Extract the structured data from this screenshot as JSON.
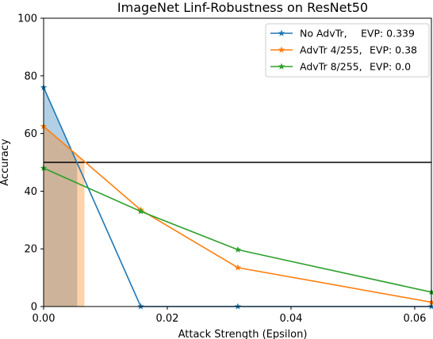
{
  "chart_data": {
    "type": "line",
    "title": "ImageNet Linf-Robustness on ResNet50",
    "xlabel": "Attack Strength (Epsilon)",
    "ylabel": "Accuracy",
    "xlim": [
      0,
      0.0627
    ],
    "ylim": [
      0,
      100
    ],
    "xticks": [
      {
        "value": 0.0,
        "label": "0.00"
      },
      {
        "value": 0.02,
        "label": "0.02"
      },
      {
        "value": 0.04,
        "label": "0.04"
      },
      {
        "value": 0.06,
        "label": "0.06"
      }
    ],
    "yticks": [
      {
        "value": 0,
        "label": "0"
      },
      {
        "value": 20,
        "label": "20"
      },
      {
        "value": 40,
        "label": "40"
      },
      {
        "value": 60,
        "label": "60"
      },
      {
        "value": 80,
        "label": "80"
      },
      {
        "value": 100,
        "label": "100"
      }
    ],
    "threshold": 50,
    "legend_position": "top-right",
    "grid": false,
    "series": [
      {
        "name": "No AdvTr,",
        "evp_label": "EVP",
        "evp_value": ": 0.339",
        "color": "#1f77b4",
        "x": [
          0,
          0.0157,
          0.0314,
          0.0627
        ],
        "y": [
          76,
          0,
          0,
          0
        ],
        "marker_x": [
          0,
          0.0157,
          0.0314,
          0.0627
        ],
        "marker_y": [
          76,
          0,
          0,
          0
        ],
        "evp_fill_x": 0.00543
      },
      {
        "name": "AdvTr 4/255,",
        "evp_label": "EVP",
        "evp_value": ": 0.38",
        "color": "#ff7f0e",
        "x": [
          0,
          0.0157,
          0.0314,
          0.0627
        ],
        "y": [
          62.5,
          33.5,
          13.5,
          1.5
        ],
        "marker_x": [
          0,
          0.0157,
          0.0314,
          0.0627
        ],
        "marker_y": [
          62.5,
          33.5,
          13.5,
          1.5
        ],
        "evp_fill_x": 0.0066
      },
      {
        "name": "AdvTr 8/255,",
        "evp_label": "EVP",
        "evp_value": ": 0.0",
        "color": "#2ca02c",
        "x": [
          0,
          0.0157,
          0.0314,
          0.0627
        ],
        "y": [
          48,
          33,
          19.7,
          5
        ],
        "marker_x": [
          0,
          0.0157,
          0.0314,
          0.0627
        ],
        "marker_y": [
          48,
          33,
          19.7,
          5
        ],
        "evp_fill_x": 0
      }
    ]
  }
}
